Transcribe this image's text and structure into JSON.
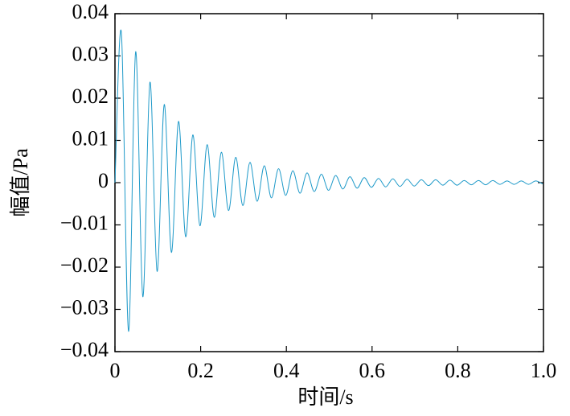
{
  "chart_data": {
    "type": "line",
    "xlabel": "时间/s",
    "ylabel": "幅值/Pa",
    "x": [
      0,
      0.015,
      0.0317,
      0.0483,
      0.065,
      0.0817,
      0.0983,
      0.115,
      0.1317,
      0.1483,
      0.165,
      0.1817,
      0.1983,
      0.215,
      0.2317,
      0.2483,
      0.265,
      0.2817,
      0.2983,
      0.315,
      0.3317,
      0.3483,
      0.365,
      0.3817,
      0.3983,
      0.415,
      0.4317,
      0.4483,
      0.465,
      0.4817,
      0.4983,
      0.515,
      0.5317,
      0.5483,
      0.565,
      0.5817,
      0.5983,
      0.615,
      0.6317,
      0.6483,
      0.665,
      0.6817,
      0.6983,
      0.715,
      0.7317,
      0.7483,
      0.765,
      0.7817,
      0.7983,
      0.815,
      0.8317,
      0.8483,
      0.865,
      0.8817,
      0.8983,
      0.915,
      0.9317,
      0.9483,
      0.965,
      0.9817,
      0.9983
    ],
    "values": [
      0,
      0.0355,
      -0.0352,
      0.031,
      -0.027,
      0.0238,
      -0.021,
      0.0185,
      -0.0165,
      0.0145,
      -0.0128,
      0.0113,
      -0.0102,
      0.009,
      -0.0082,
      0.0072,
      -0.0066,
      0.006,
      -0.0054,
      0.0048,
      -0.0044,
      0.004,
      -0.0036,
      0.0033,
      -0.003,
      0.0028,
      -0.0025,
      0.0023,
      -0.0021,
      0.002,
      -0.0018,
      0.0017,
      -0.0015,
      0.0014,
      -0.0013,
      0.0012,
      -0.0011,
      0.001,
      -0.001,
      0.0009,
      -0.0009,
      0.0008,
      -0.0008,
      0.0007,
      -0.0007,
      0.0007,
      -0.0006,
      0.0006,
      -0.0006,
      0.0005,
      -0.0005,
      0.0005,
      -0.0005,
      0.0005,
      -0.0004,
      0.0004,
      -0.0004,
      0.0004,
      -0.0004,
      0.0004,
      -0.0003
    ],
    "color": "#1f9ac9",
    "xlim": [
      0,
      1
    ],
    "xticks": [
      0,
      0.2,
      0.4,
      0.6,
      0.8,
      {
        "value": 1,
        "label": "1.0"
      }
    ],
    "ylim": [
      -0.04,
      0.04
    ],
    "yticks": [
      {
        "value": -0.04,
        "label": "−0.04"
      },
      {
        "value": -0.03,
        "label": "−0.03"
      },
      {
        "value": -0.02,
        "label": "−0.02"
      },
      {
        "value": -0.01,
        "label": "−0.01"
      },
      0,
      0.01,
      0.02,
      0.03,
      0.04
    ]
  }
}
